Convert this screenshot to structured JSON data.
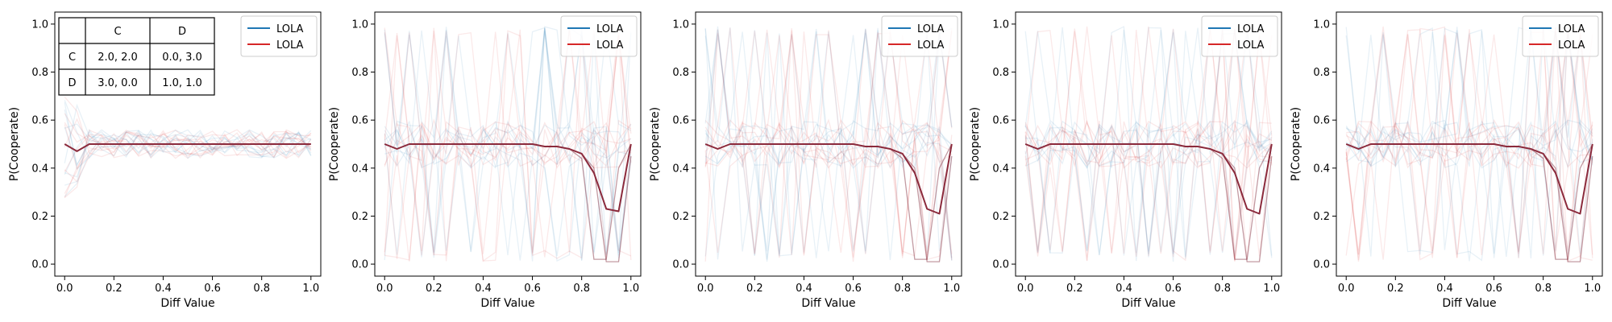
{
  "figure": {
    "panel_count": 5
  },
  "chart_data": [
    {
      "type": "line",
      "xlabel": "Diff Value",
      "ylabel": "P(Cooperate)",
      "xlim": [
        -0.04,
        1.04
      ],
      "ylim": [
        -0.05,
        1.05
      ],
      "xticks": [
        "0.0",
        "0.2",
        "0.4",
        "0.6",
        "0.8",
        "1.0"
      ],
      "yticks": [
        "0.0",
        "0.2",
        "0.4",
        "0.6",
        "0.8",
        "1.0"
      ],
      "grid": false,
      "legend_position": "top-right",
      "legend": [
        {
          "label": "LOLA",
          "color": "#1f77b4"
        },
        {
          "label": "LOLA",
          "color": "#d62728"
        }
      ],
      "series": [
        {
          "color": "#8b2a3c",
          "x": [
            0.0,
            0.05,
            0.1,
            0.15,
            0.2,
            0.25,
            0.3,
            0.35,
            0.4,
            0.45,
            0.5,
            0.55,
            0.6,
            0.65,
            0.7,
            0.75,
            0.8,
            0.85,
            0.9,
            0.95,
            1.0
          ],
          "y": [
            0.5,
            0.47,
            0.5,
            0.5,
            0.5,
            0.5,
            0.5,
            0.5,
            0.5,
            0.5,
            0.5,
            0.5,
            0.5,
            0.5,
            0.5,
            0.5,
            0.5,
            0.5,
            0.5,
            0.5,
            0.5
          ]
        }
      ],
      "payoff_table": {
        "header": [
          "",
          "C",
          "D"
        ],
        "rows": [
          [
            "C",
            "2.0, 2.0",
            "0.0, 3.0"
          ],
          [
            "D",
            "3.0, 0.0",
            "1.0, 1.0"
          ]
        ]
      }
    },
    {
      "type": "line",
      "xlabel": "Diff Value",
      "ylabel": "P(Cooperate)",
      "xlim": [
        -0.04,
        1.04
      ],
      "ylim": [
        -0.05,
        1.05
      ],
      "xticks": [
        "0.0",
        "0.2",
        "0.4",
        "0.6",
        "0.8",
        "1.0"
      ],
      "yticks": [
        "0.0",
        "0.2",
        "0.4",
        "0.6",
        "0.8",
        "1.0"
      ],
      "grid": false,
      "legend_position": "top-right",
      "legend": [
        {
          "label": "LOLA",
          "color": "#1f77b4"
        },
        {
          "label": "LOLA",
          "color": "#d62728"
        }
      ],
      "series": [
        {
          "color": "#8b2a3c",
          "x": [
            0.0,
            0.05,
            0.1,
            0.15,
            0.2,
            0.25,
            0.3,
            0.35,
            0.4,
            0.45,
            0.5,
            0.55,
            0.6,
            0.65,
            0.7,
            0.75,
            0.8,
            0.85,
            0.9,
            0.95,
            1.0
          ],
          "y": [
            0.5,
            0.48,
            0.5,
            0.5,
            0.5,
            0.5,
            0.5,
            0.5,
            0.5,
            0.5,
            0.5,
            0.5,
            0.5,
            0.49,
            0.49,
            0.48,
            0.46,
            0.38,
            0.23,
            0.22,
            0.5
          ]
        }
      ]
    },
    {
      "type": "line",
      "xlabel": "Diff Value",
      "ylabel": "P(Cooperate)",
      "xlim": [
        -0.04,
        1.04
      ],
      "ylim": [
        -0.05,
        1.05
      ],
      "xticks": [
        "0.0",
        "0.2",
        "0.4",
        "0.6",
        "0.8",
        "1.0"
      ],
      "yticks": [
        "0.0",
        "0.2",
        "0.4",
        "0.6",
        "0.8",
        "1.0"
      ],
      "grid": false,
      "legend_position": "top-right",
      "legend": [
        {
          "label": "LOLA",
          "color": "#1f77b4"
        },
        {
          "label": "LOLA",
          "color": "#d62728"
        }
      ],
      "series": [
        {
          "color": "#8b2a3c",
          "x": [
            0.0,
            0.05,
            0.1,
            0.15,
            0.2,
            0.25,
            0.3,
            0.35,
            0.4,
            0.45,
            0.5,
            0.55,
            0.6,
            0.65,
            0.7,
            0.75,
            0.8,
            0.85,
            0.9,
            0.95,
            1.0
          ],
          "y": [
            0.5,
            0.48,
            0.5,
            0.5,
            0.5,
            0.5,
            0.5,
            0.5,
            0.5,
            0.5,
            0.5,
            0.5,
            0.5,
            0.49,
            0.49,
            0.48,
            0.46,
            0.38,
            0.23,
            0.21,
            0.5
          ]
        }
      ]
    },
    {
      "type": "line",
      "xlabel": "Diff Value",
      "ylabel": "P(Cooperate)",
      "xlim": [
        -0.04,
        1.04
      ],
      "ylim": [
        -0.05,
        1.05
      ],
      "xticks": [
        "0.0",
        "0.2",
        "0.4",
        "0.6",
        "0.8",
        "1.0"
      ],
      "yticks": [
        "0.0",
        "0.2",
        "0.4",
        "0.6",
        "0.8",
        "1.0"
      ],
      "grid": false,
      "legend_position": "top-right",
      "legend": [
        {
          "label": "LOLA",
          "color": "#1f77b4"
        },
        {
          "label": "LOLA",
          "color": "#d62728"
        }
      ],
      "series": [
        {
          "color": "#8b2a3c",
          "x": [
            0.0,
            0.05,
            0.1,
            0.15,
            0.2,
            0.25,
            0.3,
            0.35,
            0.4,
            0.45,
            0.5,
            0.55,
            0.6,
            0.65,
            0.7,
            0.75,
            0.8,
            0.85,
            0.9,
            0.95,
            1.0
          ],
          "y": [
            0.5,
            0.48,
            0.5,
            0.5,
            0.5,
            0.5,
            0.5,
            0.5,
            0.5,
            0.5,
            0.5,
            0.5,
            0.5,
            0.49,
            0.49,
            0.48,
            0.46,
            0.38,
            0.23,
            0.21,
            0.5
          ]
        }
      ]
    },
    {
      "type": "line",
      "xlabel": "Diff Value",
      "ylabel": "P(Cooperate)",
      "xlim": [
        -0.04,
        1.04
      ],
      "ylim": [
        -0.05,
        1.05
      ],
      "xticks": [
        "0.0",
        "0.2",
        "0.4",
        "0.6",
        "0.8",
        "1.0"
      ],
      "yticks": [
        "0.0",
        "0.2",
        "0.4",
        "0.6",
        "0.8",
        "1.0"
      ],
      "grid": false,
      "legend_position": "top-right",
      "legend": [
        {
          "label": "LOLA",
          "color": "#1f77b4"
        },
        {
          "label": "LOLA",
          "color": "#d62728"
        }
      ],
      "series": [
        {
          "color": "#8b2a3c",
          "x": [
            0.0,
            0.05,
            0.1,
            0.15,
            0.2,
            0.25,
            0.3,
            0.35,
            0.4,
            0.45,
            0.5,
            0.55,
            0.6,
            0.65,
            0.7,
            0.75,
            0.8,
            0.85,
            0.9,
            0.95,
            1.0
          ],
          "y": [
            0.5,
            0.48,
            0.5,
            0.5,
            0.5,
            0.5,
            0.5,
            0.5,
            0.5,
            0.5,
            0.5,
            0.5,
            0.5,
            0.49,
            0.49,
            0.48,
            0.46,
            0.38,
            0.23,
            0.21,
            0.5
          ]
        }
      ]
    }
  ]
}
